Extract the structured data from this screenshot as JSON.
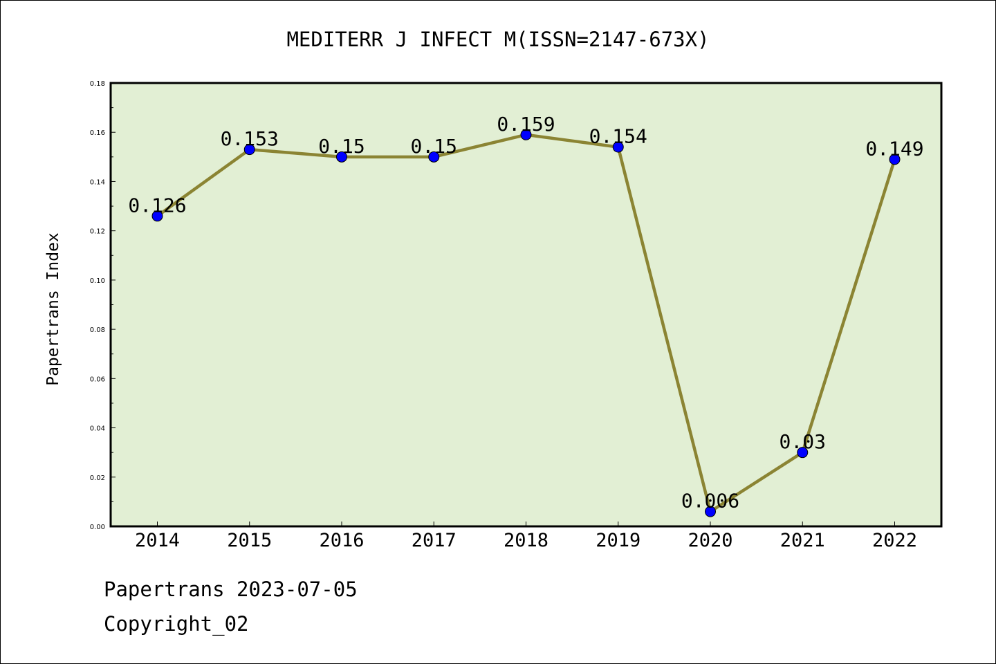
{
  "chart_data": {
    "type": "line",
    "title": "MEDITERR J INFECT M(ISSN=2147-673X)",
    "xlabel": "",
    "ylabel": "Papertrans Index",
    "categories": [
      "2014",
      "2015",
      "2016",
      "2017",
      "2018",
      "2019",
      "2020",
      "2021",
      "2022"
    ],
    "values": [
      0.126,
      0.153,
      0.15,
      0.15,
      0.159,
      0.154,
      0.006,
      0.03,
      0.149
    ],
    "data_labels": [
      "0.126",
      "0.153",
      "0.15",
      "0.15",
      "0.159",
      "0.154",
      "0.006",
      "0.03",
      "0.149"
    ],
    "ylim": [
      0,
      0.18
    ],
    "yticks": [
      "0.00",
      "0.02",
      "0.04",
      "0.06",
      "0.08",
      "0.10",
      "0.12",
      "0.14",
      "0.16",
      "0.18"
    ],
    "grid": false,
    "colors": {
      "line": "#8b8433",
      "marker": "#0000ff",
      "plot_bg": "#e2efd4"
    }
  },
  "footer": {
    "date_text": "Papertrans 2023-07-05",
    "copyright_text": "Copyright_02"
  }
}
